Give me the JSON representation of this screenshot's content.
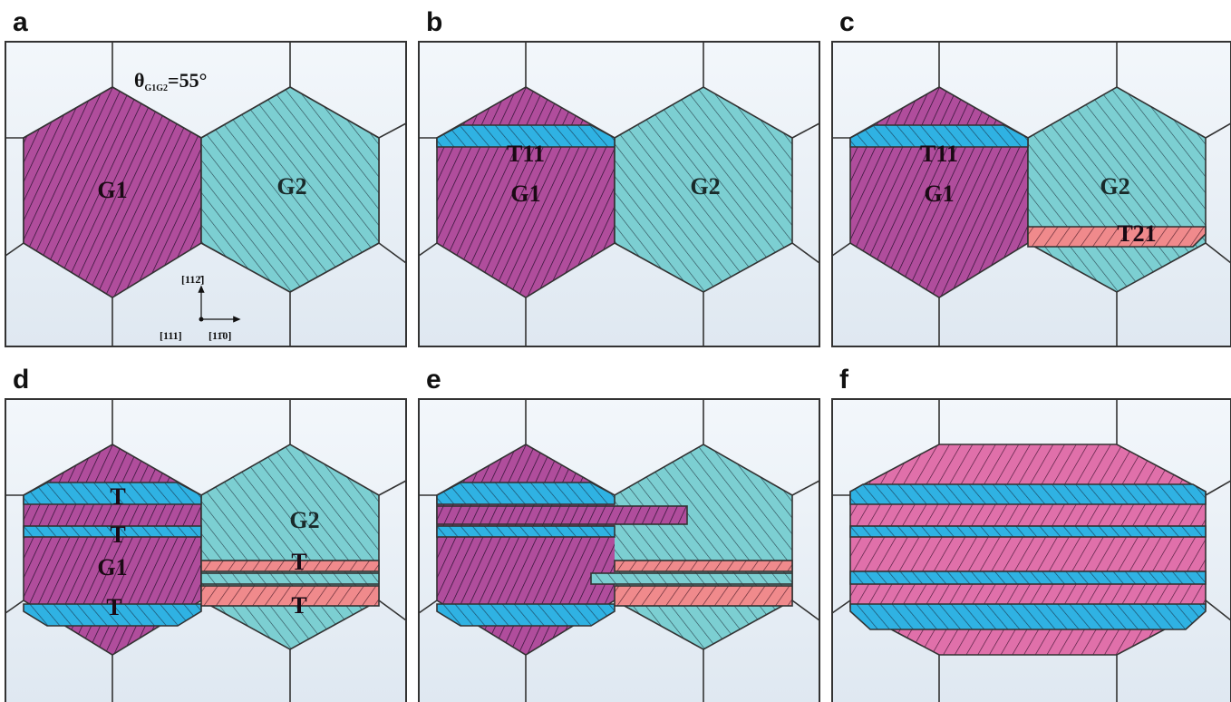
{
  "panels": [
    {
      "letter": "a"
    },
    {
      "letter": "b"
    },
    {
      "letter": "c"
    },
    {
      "letter": "d"
    },
    {
      "letter": "e"
    },
    {
      "letter": "f"
    }
  ],
  "labels": {
    "angle": "θG1G2=55°",
    "theta": "θ",
    "theta_sub": "G1G2",
    "theta_val": "=55°",
    "g1": "G1",
    "g2": "G2",
    "t11": "T11",
    "t21": "T21",
    "t": "T",
    "axis_up": "[112̄]",
    "axis_origin": "[111]",
    "axis_right": "[11̄0]"
  },
  "colors": {
    "background_cell": "#eaf0f6",
    "grain_boundary": "#333333",
    "g1_fill": "#b04d9c",
    "g2_fill": "#7ccfd2",
    "twin_blue": "#2fb2e3",
    "twin_pink": "#f08a8c",
    "recrystallized_pink": "#e070aa"
  }
}
